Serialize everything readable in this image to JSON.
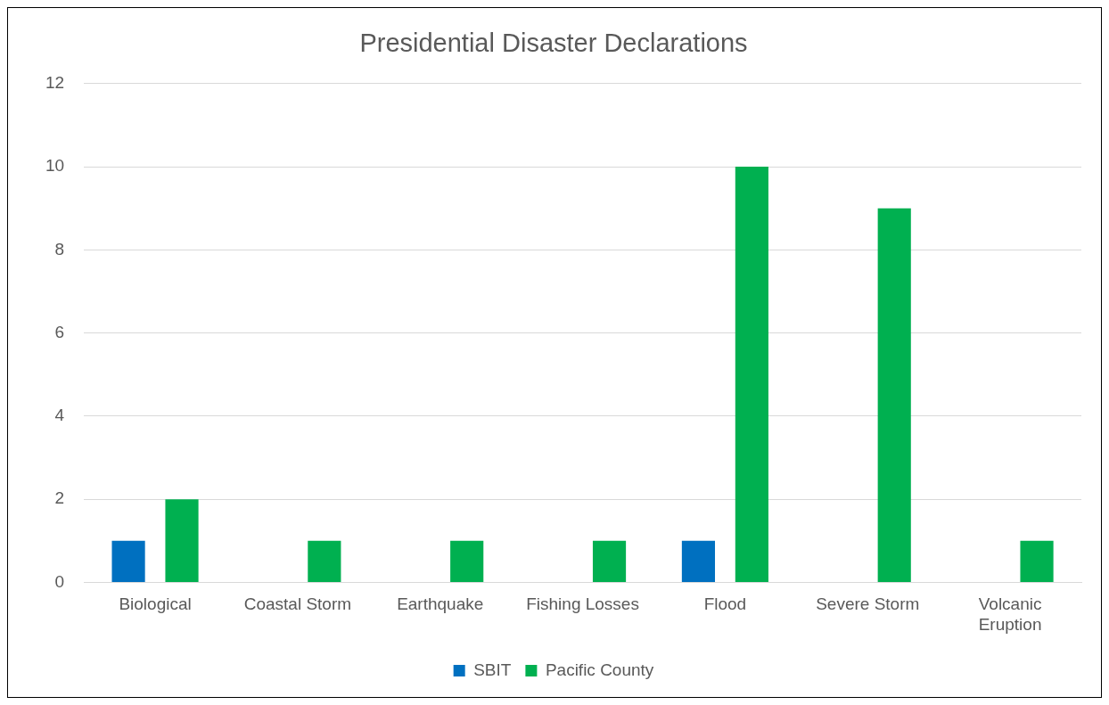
{
  "chart_data": {
    "type": "bar",
    "title": "Presidential Disaster Declarations",
    "categories": [
      "Biological",
      "Coastal Storm",
      "Earthquake",
      "Fishing Losses",
      "Flood",
      "Severe Storm",
      "Volcanic Eruption"
    ],
    "series": [
      {
        "name": "SBIT",
        "color": "#0070c0",
        "values": [
          1,
          null,
          null,
          null,
          1,
          null,
          null
        ]
      },
      {
        "name": "Pacific County",
        "color": "#00b050",
        "values": [
          2,
          1,
          1,
          1,
          10,
          9,
          1
        ]
      }
    ],
    "ylim": [
      0,
      12
    ],
    "yticks": [
      0,
      2,
      4,
      6,
      8,
      10,
      12
    ],
    "grid": "y",
    "legend": "bottom"
  }
}
